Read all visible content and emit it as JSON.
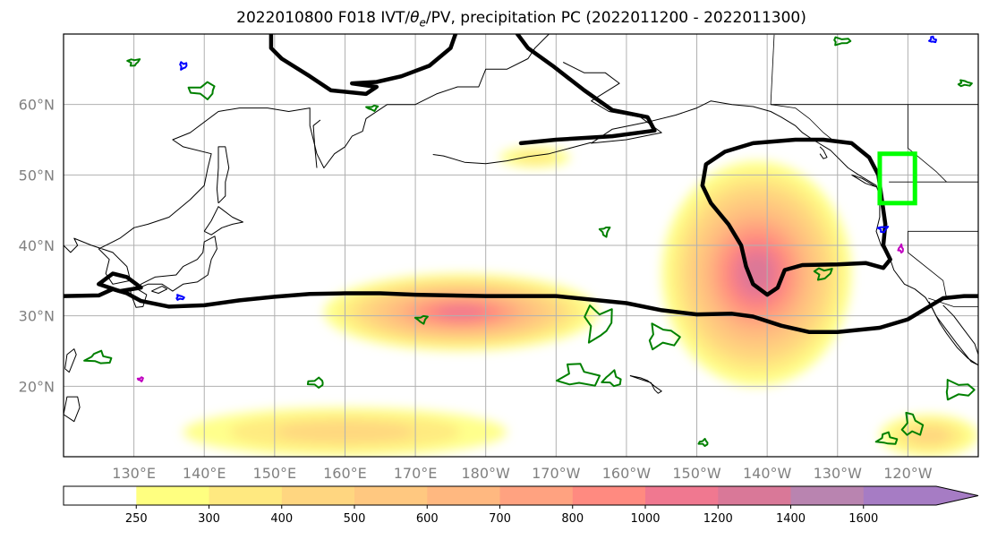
{
  "title": {
    "prefix": "2022010800 F018 IVT/",
    "theta": "θ",
    "theta_sub": "e",
    "suffix": "/PV, precipitation PC (2022011200 - 2022011300)"
  },
  "map": {
    "projection": "PlateCarree",
    "lon_range_east": [
      120,
      250
    ],
    "lat_range": [
      10,
      70
    ],
    "lat_ticks": [
      {
        "value": 60,
        "label": "60°N"
      },
      {
        "value": 50,
        "label": "50°N"
      },
      {
        "value": 40,
        "label": "40°N"
      },
      {
        "value": 30,
        "label": "30°N"
      },
      {
        "value": 20,
        "label": "20°N"
      }
    ],
    "lon_ticks": [
      {
        "value": 130,
        "label": "130°E"
      },
      {
        "value": 140,
        "label": "140°E"
      },
      {
        "value": 150,
        "label": "150°E"
      },
      {
        "value": 160,
        "label": "160°E"
      },
      {
        "value": 170,
        "label": "170°E"
      },
      {
        "value": 180,
        "label": "180°W"
      },
      {
        "value": 190,
        "label": "170°W"
      },
      {
        "value": 200,
        "label": "160°W"
      },
      {
        "value": 210,
        "label": "150°W"
      },
      {
        "value": 220,
        "label": "140°W"
      },
      {
        "value": 230,
        "label": "130°W"
      },
      {
        "value": 240,
        "label": "120°W"
      }
    ],
    "grid": true,
    "colors": {
      "coast": "#000000",
      "grid": "#b0b0b0",
      "pv_contour": "#000000",
      "precip_pos": "#008000",
      "precip_neg": "#0000ff",
      "precip_extra": "#c000c0",
      "highlight_box": "#00ff00"
    },
    "highlight_box_lonlat": {
      "lon": [
        236,
        241
      ],
      "lat": [
        46,
        53
      ]
    }
  },
  "colorbar": {
    "levels": [
      250,
      300,
      400,
      500,
      600,
      700,
      800,
      1000,
      1200,
      1400,
      1600
    ],
    "labels": [
      "250",
      "300",
      "400",
      "500",
      "600",
      "700",
      "800",
      "1000",
      "1200",
      "1400",
      "1600"
    ],
    "colors": [
      "#ffffff",
      "#ffff80",
      "#ffe980",
      "#ffd680",
      "#ffc880",
      "#ffb880",
      "#ffa280",
      "#ff8a80",
      "#f07890",
      "#d97898",
      "#b984b0",
      "#a67cc4"
    ],
    "extend": "max"
  },
  "ivt_blobs": [
    {
      "name": "central-pacific-ar",
      "lon": [
        157,
        196
      ],
      "lat": [
        25,
        36
      ],
      "peak": 1000
    },
    {
      "name": "northeast-pacific-ar",
      "lon": [
        205,
        232
      ],
      "lat": [
        20,
        52
      ],
      "peak": 1200
    },
    {
      "name": "southern-band-west",
      "lon": [
        137,
        183
      ],
      "lat": [
        10,
        17
      ],
      "peak": 400
    },
    {
      "name": "southern-band-east",
      "lon": [
        236,
        250
      ],
      "lat": [
        10,
        16
      ],
      "peak": 400
    },
    {
      "name": "aleutian-small",
      "lon": [
        182,
        192
      ],
      "lat": [
        51,
        54
      ],
      "peak": 300
    }
  ]
}
